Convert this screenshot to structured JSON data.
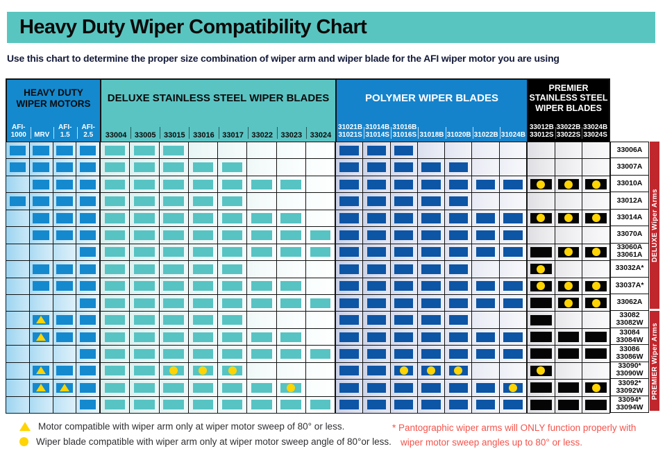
{
  "title": "Heavy Duty Wiper Compatibility Chart",
  "subtitle": "Use this chart to determine the proper size combination of wiper arm and wiper blade for the AFI  wiper motor you are using",
  "colors": {
    "title_bar_bg": "#59C5C0",
    "subtitle_text": "#141B39",
    "grid_line": "#121212",
    "marker_yellow": "#FFD403",
    "arm_bar_red": "#C0272D",
    "note_red": "#F4534B",
    "legend_text": "#2F2F33"
  },
  "legend": {
    "triangle_text": "Motor compatible with wiper arm only at wiper motor sweep of 80° or less.",
    "circle_text": "Wiper blade compatible with wiper arm only at wiper motor sweep angle of 80°or less.",
    "note_lines": [
      "* Pantographic wiper arms will ONLY  function properly with",
      "wiper motor sweep angles up to 80° or less."
    ]
  },
  "chart_data": {
    "type": "table",
    "title": "Heavy Duty Wiper Compatibility Chart",
    "cell_codes": {
      "0": "not compatible (empty cell)",
      "1": "compatible (filled square)",
      "T": "compatible, yellow triangle: motor compatible with wiper arm only at wiper motor sweep of 80° or less",
      "C": "compatible, yellow circle: wiper blade compatible with wiper arm only at wiper motor sweep angle of 80° or less"
    },
    "column_groups": [
      {
        "id": "motors",
        "title_lines": [
          "HEAVY DUTY",
          "WIPER MOTORS"
        ],
        "columns": [
          [
            "AFI-",
            "1000"
          ],
          [
            "MRV"
          ],
          [
            "AFI-",
            "1.5"
          ],
          [
            "AFI-",
            "2.5"
          ]
        ],
        "colors": {
          "header_bg": "#1489CE",
          "title_color": "#0B0B0B",
          "sub_color": "#FFFFFF",
          "square": "#1489CE",
          "cell_bg_from": "#9BD4F0",
          "cell_bg_to": "#D8EEFA",
          "separator": "rgba(255,255,255,0.75)"
        }
      },
      {
        "id": "deluxe",
        "title_lines": [
          "DELUXE STAINLESS STEEL WIPER BLADES"
        ],
        "columns": [
          [
            "33004"
          ],
          [
            "33005"
          ],
          [
            "33015"
          ],
          [
            "33016"
          ],
          [
            "33017"
          ],
          [
            "33022"
          ],
          [
            "33023"
          ],
          [
            "33024"
          ]
        ],
        "colors": {
          "header_bg": "#5AC4C3",
          "title_color": "#0B0B0B",
          "sub_color": "#0B0B0B",
          "square": "#57C3C3",
          "cell_bg_from": "#D9EFED",
          "cell_bg_to": "#FDFFFF",
          "separator": "rgba(0,0,0,0.55)"
        }
      },
      {
        "id": "polymer",
        "title_lines": [
          "POLYMER WIPER BLADES"
        ],
        "columns": [
          [
            "31021B",
            "31021S"
          ],
          [
            "31014B",
            "31014S"
          ],
          [
            "31016B",
            "31016S"
          ],
          [
            "31018B"
          ],
          [
            "31020B"
          ],
          [
            "31022B"
          ],
          [
            "31024B"
          ]
        ],
        "colors": {
          "header_bg": "#1583CB",
          "title_color": "#FFFFFF",
          "sub_color": "#FFFFFF",
          "square": "#0D55A5",
          "cell_bg_from": "#C9D0E7",
          "cell_bg_to": "#F3F4F9",
          "separator": "rgba(255,255,255,0.75)"
        }
      },
      {
        "id": "premier",
        "title_lines": [
          "PREMIER",
          "STAINLESS STEEL",
          "WIPER BLADES"
        ],
        "columns": [
          [
            "33012B",
            "33012S"
          ],
          [
            "33022B",
            "33022S"
          ],
          [
            "33024B",
            "33024S"
          ]
        ],
        "colors": {
          "header_bg": "#000000",
          "title_color": "#FFFFFF",
          "sub_color": "#FFFFFF",
          "square": "#050505",
          "cell_bg_from": "#DFDFE3",
          "cell_bg_to": "#F6F6F8",
          "separator": "rgba(255,255,255,0.4)"
        }
      }
    ],
    "arm_groups": [
      {
        "label": "DELUXE Wiper Arms",
        "row_start": 0,
        "row_count": 10
      },
      {
        "label": "PREMIER Wiper Arms",
        "row_start": 10,
        "row_count": 6
      }
    ],
    "rows": [
      {
        "label_lines": [
          "33006A"
        ],
        "cells": {
          "motors": [
            1,
            1,
            1,
            1
          ],
          "deluxe": [
            1,
            1,
            1,
            0,
            0,
            0,
            0,
            0
          ],
          "polymer": [
            1,
            1,
            1,
            0,
            0,
            0,
            0
          ],
          "premier": [
            0,
            0,
            0
          ]
        }
      },
      {
        "label_lines": [
          "33007A"
        ],
        "cells": {
          "motors": [
            1,
            1,
            1,
            1
          ],
          "deluxe": [
            1,
            1,
            1,
            1,
            1,
            0,
            0,
            0
          ],
          "polymer": [
            1,
            1,
            1,
            1,
            1,
            0,
            0
          ],
          "premier": [
            0,
            0,
            0
          ]
        }
      },
      {
        "label_lines": [
          "33010A"
        ],
        "cells": {
          "motors": [
            0,
            1,
            1,
            1
          ],
          "deluxe": [
            1,
            1,
            1,
            1,
            1,
            1,
            1,
            0
          ],
          "polymer": [
            1,
            1,
            1,
            1,
            1,
            1,
            1
          ],
          "premier": [
            "C",
            "C",
            "C"
          ]
        }
      },
      {
        "label_lines": [
          "33012A"
        ],
        "cells": {
          "motors": [
            1,
            1,
            1,
            1
          ],
          "deluxe": [
            1,
            1,
            1,
            1,
            1,
            0,
            0,
            0
          ],
          "polymer": [
            1,
            1,
            1,
            1,
            1,
            0,
            0
          ],
          "premier": [
            0,
            0,
            0
          ]
        }
      },
      {
        "label_lines": [
          "33014A"
        ],
        "cells": {
          "motors": [
            0,
            1,
            1,
            1
          ],
          "deluxe": [
            1,
            1,
            1,
            1,
            1,
            1,
            1,
            0
          ],
          "polymer": [
            1,
            1,
            1,
            1,
            1,
            1,
            1
          ],
          "premier": [
            "C",
            "C",
            "C"
          ]
        }
      },
      {
        "label_lines": [
          "33070A"
        ],
        "cells": {
          "motors": [
            0,
            1,
            1,
            1
          ],
          "deluxe": [
            1,
            1,
            1,
            1,
            1,
            1,
            1,
            1
          ],
          "polymer": [
            1,
            1,
            1,
            1,
            1,
            1,
            1
          ],
          "premier": [
            0,
            0,
            0
          ]
        }
      },
      {
        "label_lines": [
          "33060A",
          "33061A"
        ],
        "cells": {
          "motors": [
            0,
            0,
            0,
            1
          ],
          "deluxe": [
            1,
            1,
            1,
            1,
            1,
            1,
            1,
            1
          ],
          "polymer": [
            1,
            1,
            1,
            1,
            1,
            1,
            1
          ],
          "premier": [
            1,
            "C",
            "C"
          ]
        }
      },
      {
        "label_lines": [
          "33032A*"
        ],
        "cells": {
          "motors": [
            0,
            1,
            1,
            1
          ],
          "deluxe": [
            1,
            1,
            1,
            1,
            1,
            0,
            0,
            0
          ],
          "polymer": [
            1,
            1,
            1,
            1,
            1,
            0,
            0
          ],
          "premier": [
            "C",
            0,
            0
          ]
        }
      },
      {
        "label_lines": [
          "33037A*"
        ],
        "cells": {
          "motors": [
            0,
            1,
            1,
            1
          ],
          "deluxe": [
            1,
            1,
            1,
            1,
            1,
            1,
            1,
            0
          ],
          "polymer": [
            1,
            1,
            1,
            1,
            1,
            1,
            1
          ],
          "premier": [
            "C",
            "C",
            "C"
          ]
        }
      },
      {
        "label_lines": [
          "33062A"
        ],
        "cells": {
          "motors": [
            0,
            0,
            0,
            1
          ],
          "deluxe": [
            1,
            1,
            1,
            1,
            1,
            1,
            1,
            1
          ],
          "polymer": [
            1,
            1,
            1,
            1,
            1,
            1,
            1
          ],
          "premier": [
            1,
            "C",
            "C"
          ]
        }
      },
      {
        "label_lines": [
          "33082",
          "33082W"
        ],
        "cells": {
          "motors": [
            0,
            "T",
            1,
            1
          ],
          "deluxe": [
            1,
            1,
            1,
            1,
            1,
            0,
            0,
            0
          ],
          "polymer": [
            1,
            1,
            1,
            1,
            1,
            0,
            0
          ],
          "premier": [
            1,
            0,
            0
          ]
        }
      },
      {
        "label_lines": [
          "33084",
          "33084W"
        ],
        "cells": {
          "motors": [
            0,
            "T",
            1,
            1
          ],
          "deluxe": [
            1,
            1,
            1,
            1,
            1,
            1,
            1,
            0
          ],
          "polymer": [
            1,
            1,
            1,
            1,
            1,
            1,
            1
          ],
          "premier": [
            1,
            1,
            1
          ]
        }
      },
      {
        "label_lines": [
          "33086",
          "33086W"
        ],
        "cells": {
          "motors": [
            0,
            0,
            0,
            1
          ],
          "deluxe": [
            1,
            1,
            1,
            1,
            1,
            1,
            1,
            1
          ],
          "polymer": [
            1,
            1,
            1,
            1,
            1,
            1,
            1
          ],
          "premier": [
            1,
            1,
            1
          ]
        }
      },
      {
        "label_lines": [
          "33090*",
          "33090W"
        ],
        "cells": {
          "motors": [
            0,
            "T",
            1,
            1
          ],
          "deluxe": [
            1,
            1,
            "C",
            "C",
            "C",
            0,
            0,
            0
          ],
          "polymer": [
            1,
            1,
            "C",
            "C",
            "C",
            0,
            0
          ],
          "premier": [
            "C",
            0,
            0
          ]
        }
      },
      {
        "label_lines": [
          "33092*",
          "33092W"
        ],
        "cells": {
          "motors": [
            0,
            "T",
            "T",
            1
          ],
          "deluxe": [
            1,
            1,
            1,
            1,
            1,
            1,
            "C",
            0
          ],
          "polymer": [
            1,
            1,
            1,
            1,
            1,
            1,
            "C"
          ],
          "premier": [
            1,
            1,
            "C"
          ]
        }
      },
      {
        "label_lines": [
          "33094*",
          "33094W"
        ],
        "cells": {
          "motors": [
            0,
            0,
            0,
            1
          ],
          "deluxe": [
            1,
            1,
            1,
            1,
            1,
            1,
            1,
            1
          ],
          "polymer": [
            1,
            1,
            1,
            1,
            1,
            1,
            1
          ],
          "premier": [
            1,
            1,
            1
          ]
        }
      }
    ]
  }
}
